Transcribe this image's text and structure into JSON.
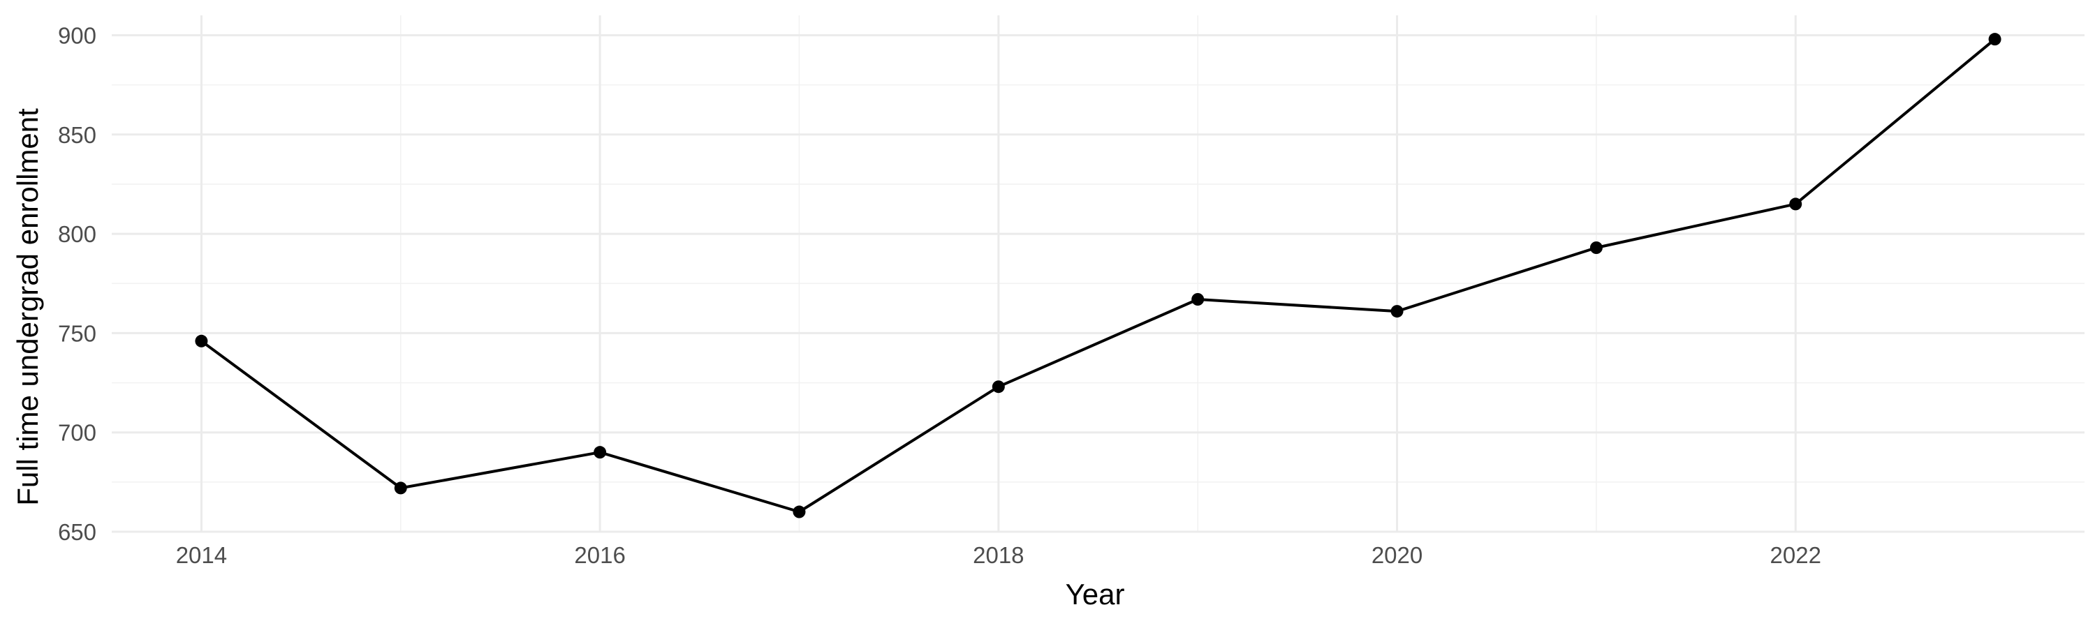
{
  "chart_data": {
    "type": "line",
    "title": "",
    "xlabel": "Year",
    "ylabel": "Full time undergrad enrollment",
    "x": [
      2014,
      2015,
      2016,
      2017,
      2018,
      2019,
      2020,
      2021,
      2022,
      2023
    ],
    "series": [
      {
        "values": [
          746,
          672,
          690,
          660,
          723,
          767,
          761,
          793,
          815,
          898
        ]
      }
    ],
    "xlim": [
      2013.55,
      2023.45
    ],
    "ylim": [
      650,
      910
    ],
    "x_ticks": [
      2014,
      2016,
      2018,
      2020,
      2022
    ],
    "x_tick_labels": [
      "2014",
      "2016",
      "2018",
      "2020",
      "2022"
    ],
    "y_ticks": [
      650,
      700,
      750,
      800,
      850,
      900
    ],
    "y_tick_labels": [
      "650",
      "700",
      "750",
      "800",
      "850",
      "900"
    ],
    "grid": true,
    "legend": "none",
    "colors": {
      "line": "#000000",
      "point": "#000000",
      "grid_major": "#ebebeb",
      "grid_minor": "#f2f2f2",
      "tick_text": "#4d4d4d"
    }
  }
}
